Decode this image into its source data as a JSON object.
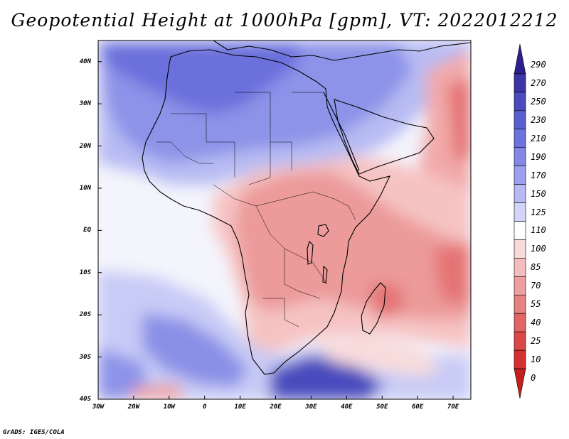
{
  "title": "Geopotential Height at 1000hPa [gpm], VT: 2022012212",
  "credit": "GrADS: IGES/COLA",
  "map": {
    "region": "Africa and surroundings",
    "variable": "Geopotential Height at 1000hPa",
    "units": "gpm",
    "valid_time": "2022012212",
    "lon_range": [
      -30,
      75
    ],
    "lat_range": [
      -40,
      45
    ],
    "lat_ticks": [
      {
        "value": 40,
        "label": "40N"
      },
      {
        "value": 30,
        "label": "30N"
      },
      {
        "value": 20,
        "label": "20N"
      },
      {
        "value": 10,
        "label": "10N"
      },
      {
        "value": 0,
        "label": "EQ"
      },
      {
        "value": -10,
        "label": "10S"
      },
      {
        "value": -20,
        "label": "20S"
      },
      {
        "value": -30,
        "label": "30S"
      },
      {
        "value": -40,
        "label": "40S"
      }
    ],
    "lon_ticks": [
      {
        "value": -30,
        "label": "30W"
      },
      {
        "value": -20,
        "label": "20W"
      },
      {
        "value": -10,
        "label": "10W"
      },
      {
        "value": 0,
        "label": "0"
      },
      {
        "value": 10,
        "label": "10E"
      },
      {
        "value": 20,
        "label": "20E"
      },
      {
        "value": 30,
        "label": "30E"
      },
      {
        "value": 40,
        "label": "40E"
      },
      {
        "value": 50,
        "label": "50E"
      },
      {
        "value": 60,
        "label": "60E"
      },
      {
        "value": 70,
        "label": "70E"
      }
    ]
  },
  "colorbar": {
    "labels": [
      "290",
      "270",
      "250",
      "230",
      "210",
      "190",
      "170",
      "150",
      "125",
      "110",
      "100",
      "85",
      "70",
      "55",
      "40",
      "25",
      "10",
      "0"
    ],
    "colors": [
      "#2d1f8f",
      "#3b35a6",
      "#4a4bbd",
      "#5a5fd0",
      "#6c73de",
      "#8388e6",
      "#9da0ee",
      "#b7b9f3",
      "#d3d4f8",
      "#ffffff",
      "#fad9d9",
      "#f4bcbc",
      "#ee9f9f",
      "#e88181",
      "#e26464",
      "#dc4747",
      "#d43131",
      "#c41f1f"
    ]
  }
}
